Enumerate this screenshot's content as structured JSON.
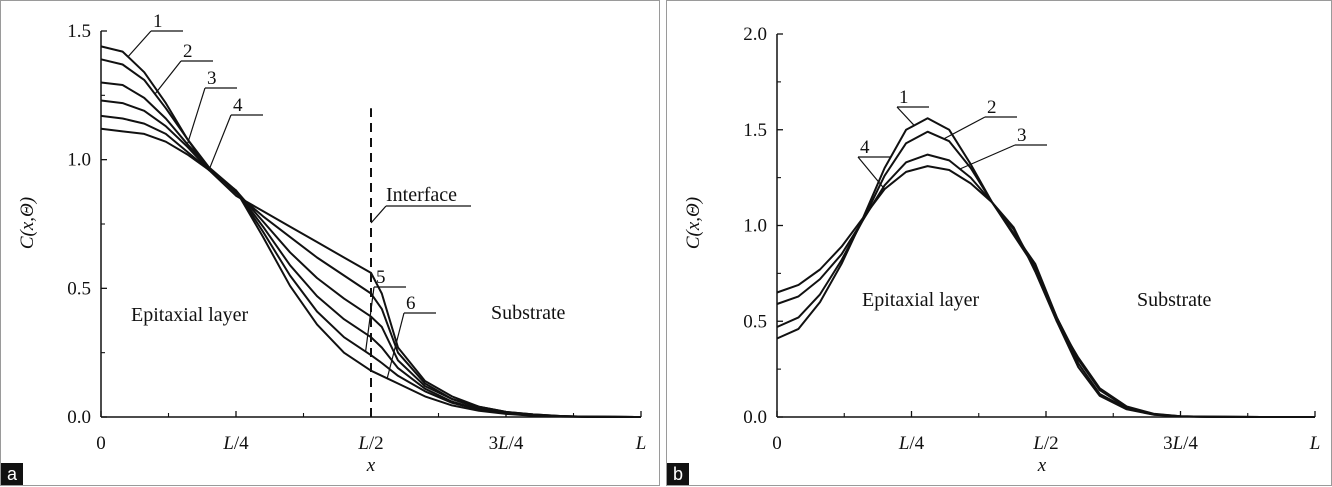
{
  "chart_data": [
    {
      "panel": "a",
      "type": "line",
      "ylabel": "C(x,Θ)",
      "xlabel": "x",
      "ylim": [
        0,
        1.5
      ],
      "yticks": [
        0.0,
        0.5,
        1.0,
        1.5
      ],
      "ytick_labels": [
        "0.0",
        "0.5",
        "1.0",
        "1.5"
      ],
      "xticks": [
        0,
        0.25,
        0.5,
        0.75,
        1.0
      ],
      "xtick_labels": [
        "0",
        "L/4",
        "L/2",
        "3L/4",
        "L"
      ],
      "interface_x": 0.5,
      "interface_label": "Interface",
      "region_labels": [
        "Epitaxial layer",
        "Substrate"
      ],
      "series": [
        {
          "name": "1",
          "x": [
            0,
            0.04,
            0.08,
            0.12,
            0.16,
            0.2,
            0.25,
            0.3,
            0.35,
            0.4,
            0.45,
            0.5,
            0.52,
            0.55,
            0.6,
            0.65,
            0.7,
            0.75,
            0.8,
            0.85,
            0.9,
            1.0
          ],
          "y": [
            1.44,
            1.42,
            1.34,
            1.22,
            1.08,
            0.96,
            0.86,
            0.8,
            0.74,
            0.68,
            0.62,
            0.56,
            0.48,
            0.27,
            0.14,
            0.08,
            0.04,
            0.02,
            0.01,
            0.004,
            0.001,
            0
          ]
        },
        {
          "name": "2",
          "x": [
            0,
            0.04,
            0.08,
            0.12,
            0.16,
            0.2,
            0.25,
            0.3,
            0.35,
            0.4,
            0.45,
            0.5,
            0.52,
            0.55,
            0.6,
            0.65,
            0.7,
            0.75,
            0.8,
            0.85,
            0.9,
            1.0
          ],
          "y": [
            1.39,
            1.37,
            1.31,
            1.2,
            1.08,
            0.97,
            0.87,
            0.78,
            0.7,
            0.62,
            0.55,
            0.48,
            0.42,
            0.25,
            0.13,
            0.07,
            0.04,
            0.02,
            0.01,
            0.004,
            0.001,
            0
          ]
        },
        {
          "name": "3",
          "x": [
            0,
            0.04,
            0.08,
            0.12,
            0.16,
            0.2,
            0.25,
            0.3,
            0.35,
            0.4,
            0.45,
            0.5,
            0.52,
            0.55,
            0.6,
            0.65,
            0.7,
            0.75,
            0.8,
            0.85,
            0.9,
            1.0
          ],
          "y": [
            1.3,
            1.29,
            1.24,
            1.16,
            1.06,
            0.97,
            0.88,
            0.76,
            0.64,
            0.54,
            0.46,
            0.39,
            0.35,
            0.22,
            0.12,
            0.07,
            0.035,
            0.018,
            0.008,
            0.003,
            0.001,
            0
          ]
        },
        {
          "name": "4",
          "x": [
            0,
            0.04,
            0.08,
            0.12,
            0.16,
            0.2,
            0.25,
            0.3,
            0.35,
            0.4,
            0.45,
            0.5,
            0.52,
            0.55,
            0.6,
            0.65,
            0.7,
            0.75,
            0.8,
            0.85,
            0.9,
            1.0
          ],
          "y": [
            1.23,
            1.22,
            1.19,
            1.13,
            1.05,
            0.96,
            0.88,
            0.74,
            0.59,
            0.47,
            0.38,
            0.31,
            0.27,
            0.19,
            0.11,
            0.06,
            0.03,
            0.016,
            0.007,
            0.003,
            0.001,
            0
          ]
        },
        {
          "name": "5",
          "x": [
            0,
            0.04,
            0.08,
            0.12,
            0.16,
            0.2,
            0.25,
            0.3,
            0.35,
            0.4,
            0.45,
            0.5,
            0.52,
            0.55,
            0.6,
            0.65,
            0.7,
            0.75,
            0.8,
            0.85,
            0.9,
            1.0
          ],
          "y": [
            1.17,
            1.16,
            1.14,
            1.1,
            1.03,
            0.96,
            0.88,
            0.72,
            0.55,
            0.41,
            0.31,
            0.24,
            0.21,
            0.16,
            0.1,
            0.055,
            0.028,
            0.014,
            0.006,
            0.002,
            0.001,
            0
          ]
        },
        {
          "name": "6",
          "x": [
            0,
            0.04,
            0.08,
            0.12,
            0.16,
            0.2,
            0.25,
            0.3,
            0.35,
            0.4,
            0.45,
            0.5,
            0.52,
            0.55,
            0.6,
            0.65,
            0.7,
            0.75,
            0.8,
            0.85,
            0.9,
            1.0
          ],
          "y": [
            1.12,
            1.11,
            1.1,
            1.07,
            1.02,
            0.96,
            0.88,
            0.7,
            0.51,
            0.36,
            0.25,
            0.18,
            0.16,
            0.13,
            0.08,
            0.045,
            0.024,
            0.012,
            0.005,
            0.002,
            0.001,
            0
          ]
        }
      ],
      "panel_tag": "a"
    },
    {
      "panel": "b",
      "type": "line",
      "ylabel": "C(x,Θ)",
      "xlabel": "x",
      "ylim": [
        0,
        2.0
      ],
      "yticks": [
        0.0,
        0.5,
        1.0,
        1.5,
        2.0
      ],
      "ytick_labels": [
        "0.0",
        "0.5",
        "1.0",
        "1.5",
        "2.0"
      ],
      "xticks": [
        0,
        0.25,
        0.5,
        0.75,
        1.0
      ],
      "xtick_labels": [
        "0",
        "L/4",
        "L/2",
        "3L/4",
        "L"
      ],
      "region_labels": [
        "Epitaxial layer",
        "Substrate"
      ],
      "series": [
        {
          "name": "1",
          "x": [
            0,
            0.04,
            0.08,
            0.12,
            0.16,
            0.2,
            0.24,
            0.28,
            0.32,
            0.36,
            0.4,
            0.44,
            0.48,
            0.52,
            0.56,
            0.6,
            0.65,
            0.7,
            0.75,
            0.8,
            0.9,
            1.0
          ],
          "y": [
            0.41,
            0.46,
            0.6,
            0.8,
            1.04,
            1.3,
            1.5,
            1.56,
            1.5,
            1.32,
            1.12,
            0.95,
            0.78,
            0.5,
            0.26,
            0.11,
            0.04,
            0.012,
            0.003,
            0.001,
            0,
            0
          ]
        },
        {
          "name": "2",
          "x": [
            0,
            0.04,
            0.08,
            0.12,
            0.16,
            0.2,
            0.24,
            0.28,
            0.32,
            0.36,
            0.4,
            0.44,
            0.48,
            0.52,
            0.56,
            0.6,
            0.65,
            0.7,
            0.75,
            0.8,
            0.9,
            1.0
          ],
          "y": [
            0.47,
            0.52,
            0.64,
            0.82,
            1.03,
            1.26,
            1.43,
            1.49,
            1.44,
            1.3,
            1.12,
            0.96,
            0.8,
            0.52,
            0.28,
            0.12,
            0.045,
            0.013,
            0.003,
            0.001,
            0,
            0
          ]
        },
        {
          "name": "3",
          "x": [
            0,
            0.04,
            0.08,
            0.12,
            0.16,
            0.2,
            0.24,
            0.28,
            0.32,
            0.36,
            0.4,
            0.44,
            0.48,
            0.52,
            0.56,
            0.6,
            0.65,
            0.7,
            0.75,
            0.8,
            0.9,
            1.0
          ],
          "y": [
            0.59,
            0.63,
            0.72,
            0.85,
            1.03,
            1.21,
            1.33,
            1.37,
            1.34,
            1.25,
            1.12,
            0.98,
            0.78,
            0.52,
            0.3,
            0.14,
            0.05,
            0.015,
            0.004,
            0.001,
            0,
            0
          ]
        },
        {
          "name": "4",
          "x": [
            0,
            0.04,
            0.08,
            0.12,
            0.16,
            0.2,
            0.24,
            0.28,
            0.32,
            0.36,
            0.4,
            0.44,
            0.48,
            0.52,
            0.56,
            0.6,
            0.65,
            0.7,
            0.75,
            0.8,
            0.9,
            1.0
          ],
          "y": [
            0.65,
            0.69,
            0.77,
            0.89,
            1.04,
            1.19,
            1.28,
            1.31,
            1.29,
            1.22,
            1.12,
            0.99,
            0.76,
            0.5,
            0.31,
            0.15,
            0.055,
            0.017,
            0.004,
            0.001,
            0,
            0
          ]
        }
      ],
      "panel_tag": "b"
    }
  ]
}
